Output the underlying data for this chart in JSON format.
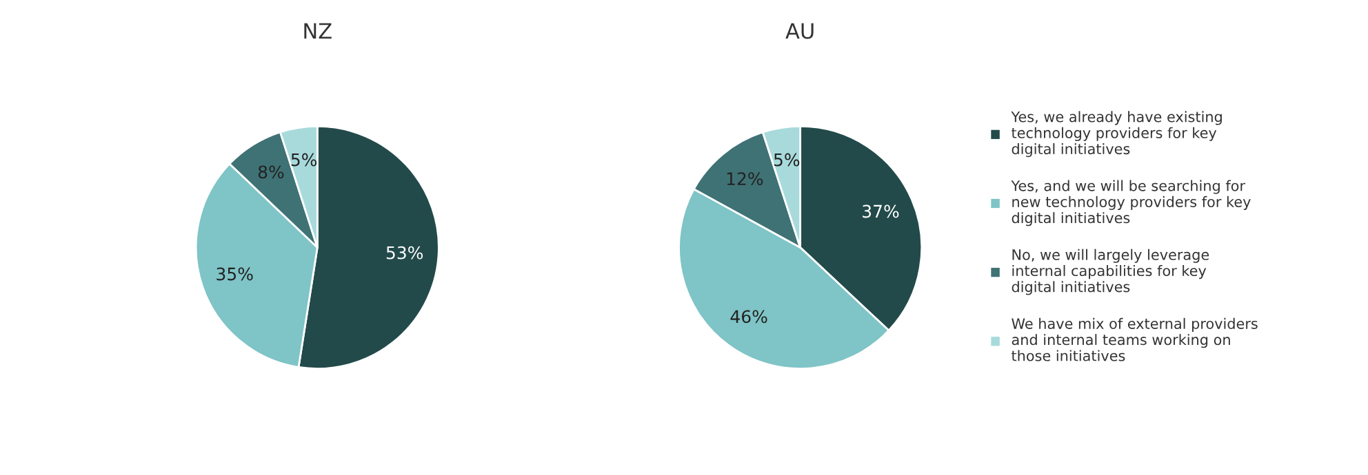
{
  "chart_data": [
    {
      "type": "pie",
      "title": "NZ",
      "categories": [
        "Yes, we already have existing technology providers for key digital initiatives",
        "Yes, and we will be searching for new technology providers for key digital initiatives",
        "No, we will largely leverage internal capabilities for key digital initiatives",
        "We have mix of external providers and internal teams working on those initiatives"
      ],
      "values": [
        53,
        35,
        8,
        5
      ],
      "colors": [
        "#234a4a",
        "#7fc4c6",
        "#3f7275",
        "#a8dadc"
      ],
      "value_labels": [
        "53%",
        "35%",
        "8%",
        "5%"
      ],
      "legend": "right"
    },
    {
      "type": "pie",
      "title": "AU",
      "categories": [
        null,
        null,
        null,
        null
      ],
      "values": [
        37,
        46,
        12,
        5
      ],
      "colors": [
        "#234a4a",
        "#7fc4c6",
        "#3f7275",
        "#a8dadc"
      ],
      "value_labels": [
        "37%",
        "46%",
        "12%",
        "5%"
      ],
      "legend": false
    }
  ]
}
